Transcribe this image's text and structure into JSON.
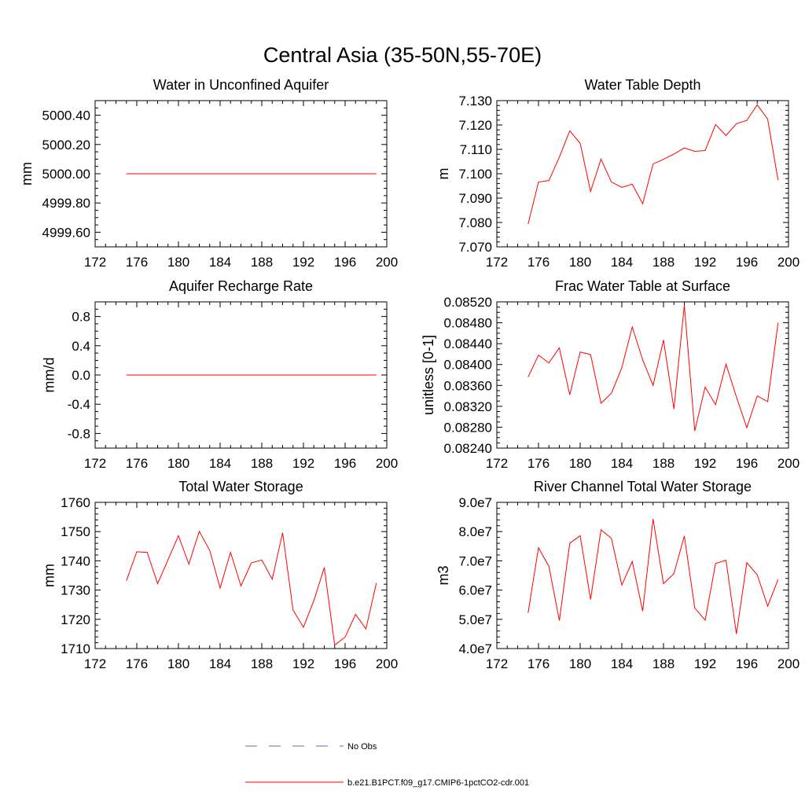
{
  "title": "Central Asia (35-50N,55-70E)",
  "colors": {
    "model": "#ff0000",
    "obs": "#6a6ab0",
    "axis": "#000000"
  },
  "legend": {
    "obs_label": "No Obs",
    "model_label": "b.e21.B1PCT.f09_g17.CMIP6-1pctCO2-cdr.001"
  },
  "chart_data": [
    {
      "type": "line",
      "title": "Water in Unconfined Aquifer",
      "ylabel": "mm",
      "xlabel": "",
      "xlim": [
        172,
        200
      ],
      "ylim": [
        4999.5,
        5000.5
      ],
      "xticks": [
        172,
        176,
        180,
        184,
        188,
        192,
        196,
        200
      ],
      "xtick_labels": [
        "172",
        "176",
        "180",
        "184",
        "188",
        "192",
        "196",
        "200"
      ],
      "yticks": [
        4999.6,
        4999.8,
        5000.0,
        5000.2,
        5000.4
      ],
      "ytick_labels": [
        "4999.60",
        "4999.80",
        "5000.00",
        "5000.20",
        "5000.40"
      ],
      "yminor": 0.05,
      "x": [
        175,
        176,
        177,
        178,
        179,
        180,
        181,
        182,
        183,
        184,
        185,
        186,
        187,
        188,
        189,
        190,
        191,
        192,
        193,
        194,
        195,
        196,
        197,
        198,
        199
      ],
      "series": [
        {
          "values": [
            5000,
            5000,
            5000,
            5000,
            5000,
            5000,
            5000,
            5000,
            5000,
            5000,
            5000,
            5000,
            5000,
            5000,
            5000,
            5000,
            5000,
            5000,
            5000,
            5000,
            5000,
            5000,
            5000,
            5000,
            5000
          ]
        }
      ]
    },
    {
      "type": "line",
      "title": "Water Table Depth",
      "ylabel": "m",
      "xlabel": "",
      "xlim": [
        172,
        200
      ],
      "ylim": [
        7.07,
        7.13
      ],
      "xticks": [
        172,
        176,
        180,
        184,
        188,
        192,
        196,
        200
      ],
      "xtick_labels": [
        "172",
        "176",
        "180",
        "184",
        "188",
        "192",
        "196",
        "200"
      ],
      "yticks": [
        7.07,
        7.08,
        7.09,
        7.1,
        7.11,
        7.12,
        7.13
      ],
      "ytick_labels": [
        "7.070",
        "7.080",
        "7.090",
        "7.100",
        "7.110",
        "7.120",
        "7.130"
      ],
      "yminor": 0.002,
      "x": [
        175,
        176,
        177,
        178,
        179,
        180,
        181,
        182,
        183,
        184,
        185,
        186,
        187,
        188,
        189,
        190,
        191,
        192,
        193,
        194,
        195,
        196,
        197,
        198,
        199
      ],
      "series": [
        {
          "values": [
            7.0793,
            7.0966,
            7.0972,
            7.1068,
            7.1176,
            7.1125,
            7.0927,
            7.106,
            7.0966,
            7.0944,
            7.0957,
            7.0877,
            7.104,
            7.1059,
            7.1081,
            7.1106,
            7.1092,
            7.1095,
            7.1202,
            7.1157,
            7.1205,
            7.1219,
            7.1283,
            7.1224,
            7.0973
          ]
        }
      ]
    },
    {
      "type": "line",
      "title": "Aquifer Recharge Rate",
      "ylabel": "mm/d",
      "xlabel": "",
      "xlim": [
        172,
        200
      ],
      "ylim": [
        -1.0,
        1.0
      ],
      "xticks": [
        172,
        176,
        180,
        184,
        188,
        192,
        196,
        200
      ],
      "xtick_labels": [
        "172",
        "176",
        "180",
        "184",
        "188",
        "192",
        "196",
        "200"
      ],
      "yticks": [
        -0.8,
        -0.4,
        0.0,
        0.4,
        0.8
      ],
      "ytick_labels": [
        "-0.8",
        "-0.4",
        "0.0",
        "0.4",
        "0.8"
      ],
      "yminor": 0.1,
      "x": [
        175,
        176,
        177,
        178,
        179,
        180,
        181,
        182,
        183,
        184,
        185,
        186,
        187,
        188,
        189,
        190,
        191,
        192,
        193,
        194,
        195,
        196,
        197,
        198,
        199
      ],
      "series": [
        {
          "values": [
            0,
            0,
            0,
            0,
            0,
            0,
            0,
            0,
            0,
            0,
            0,
            0,
            0,
            0,
            0,
            0,
            0,
            0,
            0,
            0,
            0,
            0,
            0,
            0,
            0
          ]
        }
      ]
    },
    {
      "type": "line",
      "title": "Frac Water Table at Surface",
      "ylabel": "unitless [0-1]",
      "xlabel": "",
      "xlim": [
        172,
        200
      ],
      "ylim": [
        0.0824,
        0.0852
      ],
      "xticks": [
        172,
        176,
        180,
        184,
        188,
        192,
        196,
        200
      ],
      "xtick_labels": [
        "172",
        "176",
        "180",
        "184",
        "188",
        "192",
        "196",
        "200"
      ],
      "yticks": [
        0.0824,
        0.0828,
        0.0832,
        0.0836,
        0.084,
        0.0844,
        0.0848,
        0.0852
      ],
      "ytick_labels": [
        "0.08240",
        "0.08280",
        "0.08320",
        "0.08360",
        "0.08400",
        "0.08440",
        "0.08480",
        "0.08520"
      ],
      "yminor": 0.0001,
      "x": [
        175,
        176,
        177,
        178,
        179,
        180,
        181,
        182,
        183,
        184,
        185,
        186,
        187,
        188,
        189,
        190,
        191,
        192,
        193,
        194,
        195,
        196,
        197,
        198,
        199
      ],
      "series": [
        {
          "values": [
            0.08376,
            0.08418,
            0.08403,
            0.08432,
            0.08342,
            0.08424,
            0.08419,
            0.08326,
            0.08345,
            0.08394,
            0.08472,
            0.08409,
            0.0836,
            0.08447,
            0.08315,
            0.08514,
            0.08273,
            0.08357,
            0.08323,
            0.08401,
            0.08338,
            0.08279,
            0.0834,
            0.08329,
            0.0848
          ]
        }
      ]
    },
    {
      "type": "line",
      "title": "Total Water Storage",
      "ylabel": "mm",
      "xlabel": "",
      "xlim": [
        172,
        200
      ],
      "ylim": [
        1710,
        1760
      ],
      "xticks": [
        172,
        176,
        180,
        184,
        188,
        192,
        196,
        200
      ],
      "xtick_labels": [
        "172",
        "176",
        "180",
        "184",
        "188",
        "192",
        "196",
        "200"
      ],
      "yticks": [
        1710,
        1720,
        1730,
        1740,
        1750,
        1760
      ],
      "ytick_labels": [
        "1710",
        "1720",
        "1730",
        "1740",
        "1750",
        "1760"
      ],
      "yminor": 2,
      "x": [
        175,
        176,
        177,
        178,
        179,
        180,
        181,
        182,
        183,
        184,
        185,
        186,
        187,
        188,
        189,
        190,
        191,
        192,
        193,
        194,
        195,
        196,
        197,
        198,
        199
      ],
      "series": [
        {
          "values": [
            1733.2,
            1743.1,
            1742.9,
            1732.2,
            1740.4,
            1748.6,
            1738.9,
            1750.1,
            1743.6,
            1730.7,
            1742.9,
            1731.4,
            1739.3,
            1740.3,
            1733.7,
            1749.6,
            1723.2,
            1717.3,
            1726.4,
            1737.7,
            1711.2,
            1713.9,
            1721.7,
            1716.7,
            1732.4
          ]
        }
      ]
    },
    {
      "type": "line",
      "title": "River Channel Total Water Storage",
      "ylabel": "m3",
      "xlabel": "",
      "xlim": [
        172,
        200
      ],
      "ylim": [
        40000000,
        90000000
      ],
      "xticks": [
        172,
        176,
        180,
        184,
        188,
        192,
        196,
        200
      ],
      "xtick_labels": [
        "172",
        "176",
        "180",
        "184",
        "188",
        "192",
        "196",
        "200"
      ],
      "yticks": [
        40000000,
        50000000,
        60000000,
        70000000,
        80000000,
        90000000
      ],
      "ytick_labels": [
        "4.0e7",
        "5.0e7",
        "6.0e7",
        "7.0e7",
        "8.0e7",
        "9.0e7"
      ],
      "yminor": 2000000,
      "x": [
        175,
        176,
        177,
        178,
        179,
        180,
        181,
        182,
        183,
        184,
        185,
        186,
        187,
        188,
        189,
        190,
        191,
        192,
        193,
        194,
        195,
        196,
        197,
        198,
        199
      ],
      "series": [
        {
          "values": [
            52200000,
            74500000,
            68100000,
            49600000,
            76000000,
            78600000,
            56800000,
            80600000,
            77700000,
            61700000,
            69800000,
            52800000,
            84300000,
            62200000,
            65600000,
            78500000,
            53900000,
            49700000,
            69100000,
            70200000,
            45000000,
            69400000,
            65200000,
            54500000,
            63600000
          ]
        }
      ]
    }
  ]
}
